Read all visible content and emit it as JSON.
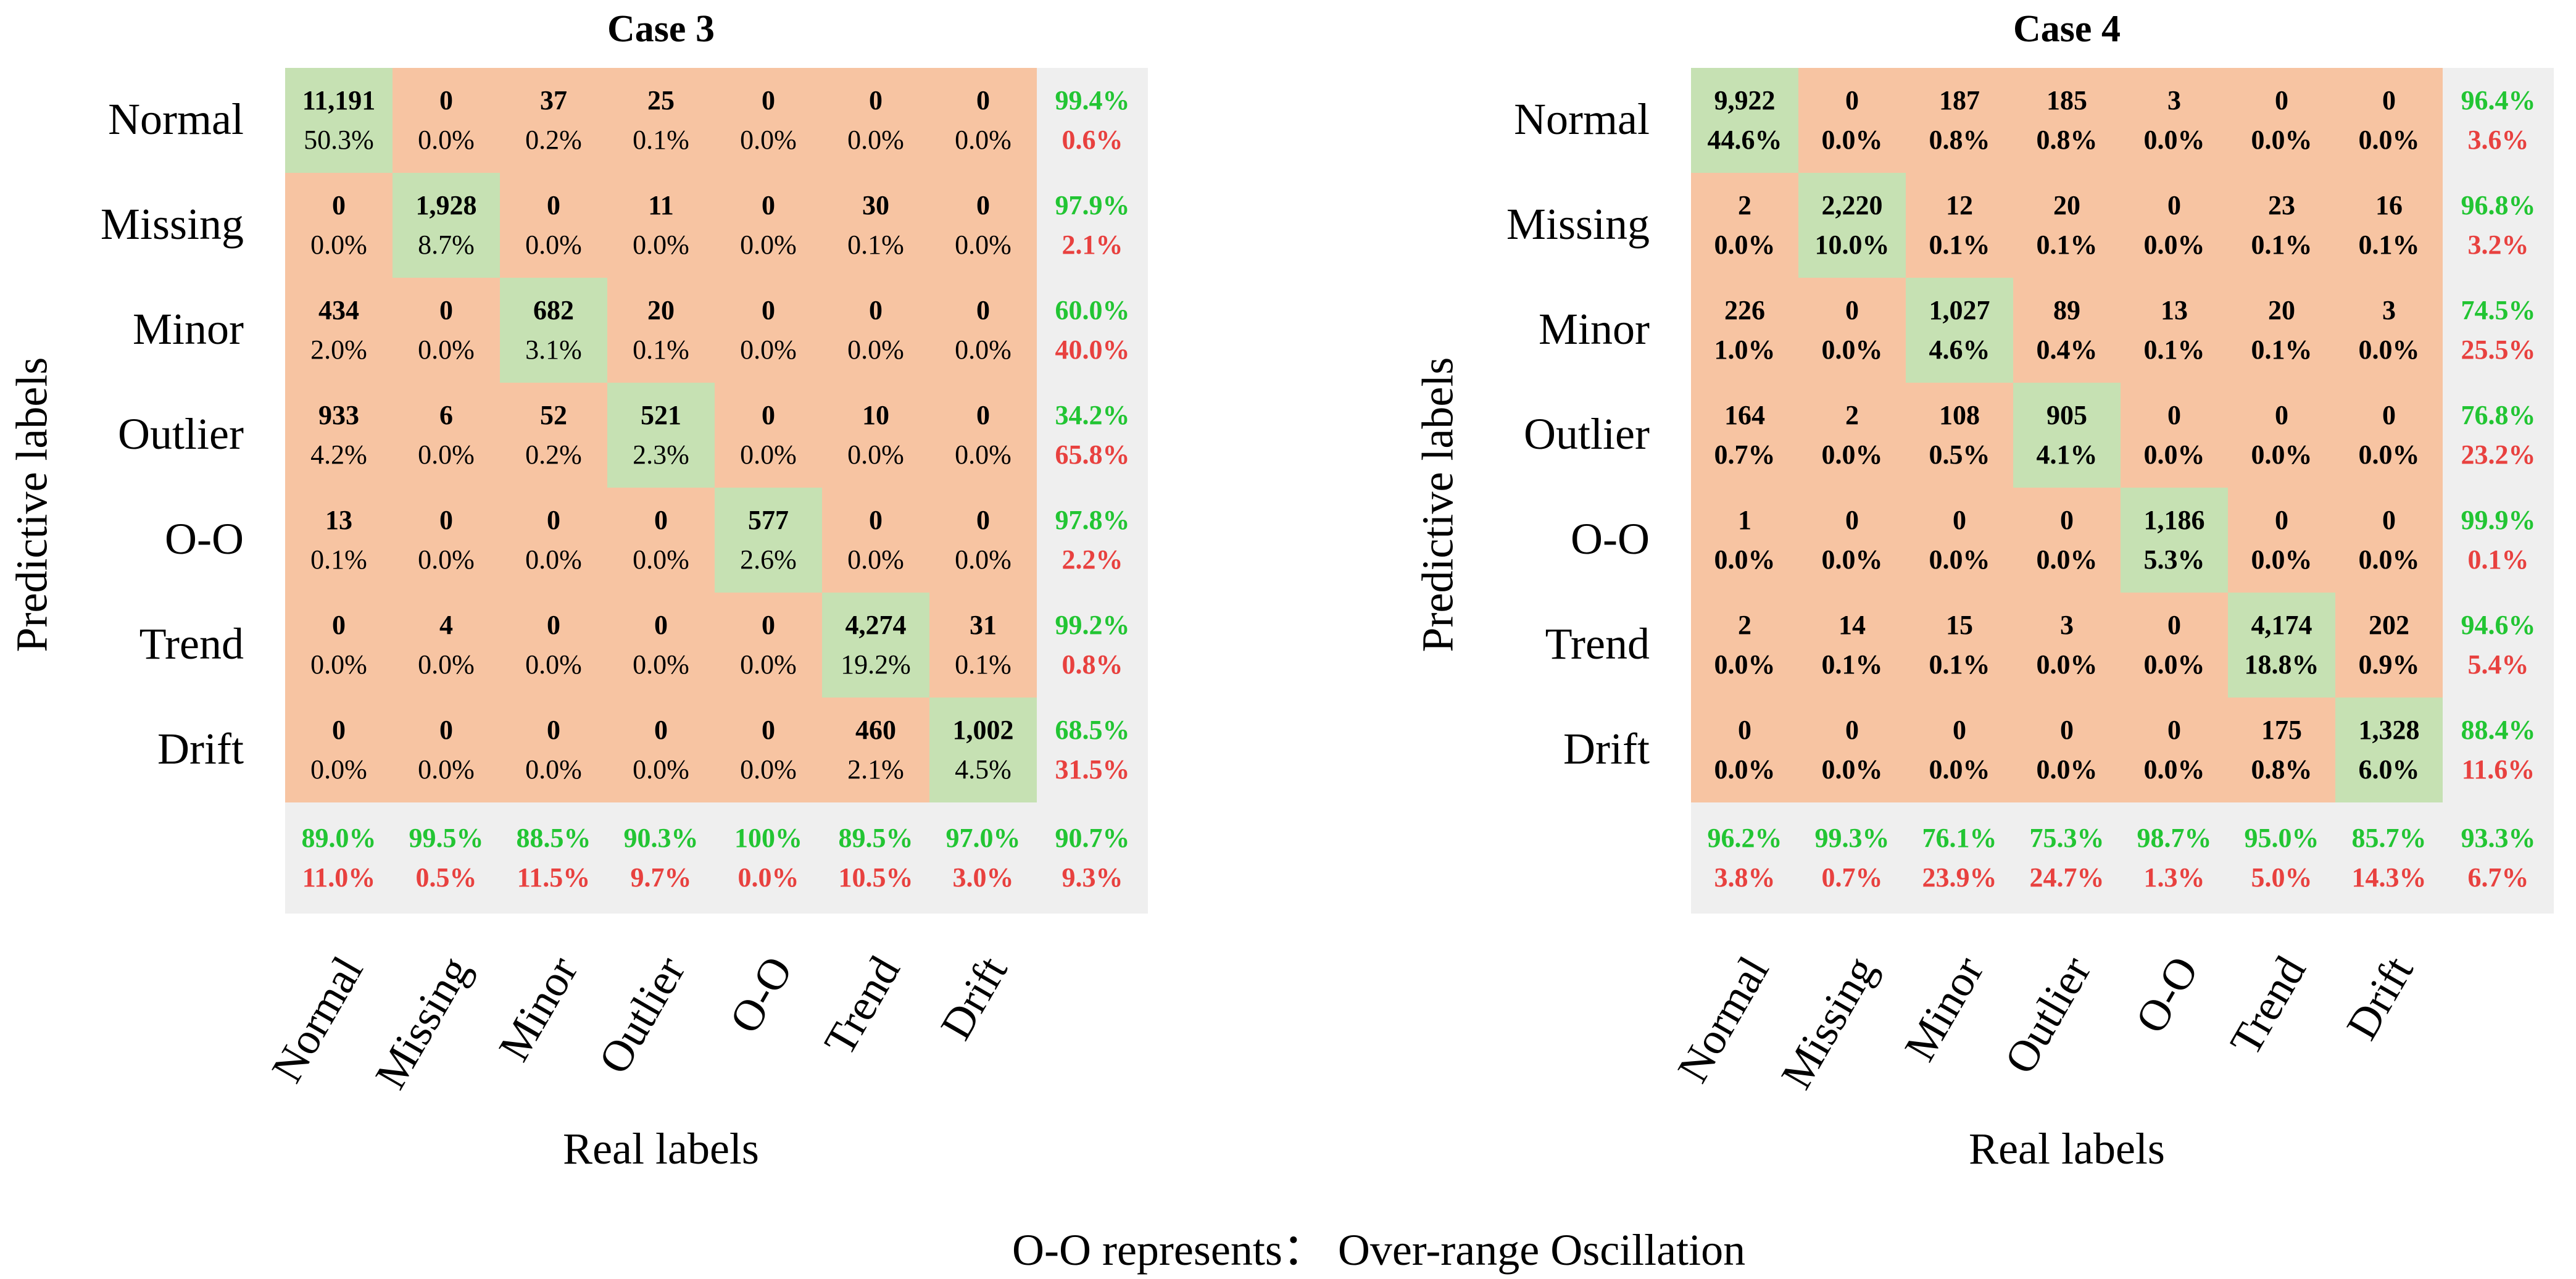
{
  "colors": {
    "diag": "#c6e1b3",
    "off": "#f7c4a2",
    "summary_bg": "#efefef",
    "good": "#22c533",
    "bad": "#e8413f"
  },
  "chart_data": [
    {
      "type": "heatmap",
      "title": "Case 3",
      "xlabel": "Real labels",
      "ylabel": "Predictive labels",
      "row_labels": [
        "Normal",
        "Missing",
        "Minor",
        "Outlier",
        "O-O",
        "Trend",
        "Drift"
      ],
      "col_labels": [
        "Normal",
        "Missing",
        "Minor",
        "Outlier",
        "O-O",
        "Trend",
        "Drift"
      ],
      "counts": [
        [
          "11,191",
          "0",
          "37",
          "25",
          "0",
          "0",
          "0"
        ],
        [
          "0",
          "1,928",
          "0",
          "11",
          "0",
          "30",
          "0"
        ],
        [
          "434",
          "0",
          "682",
          "20",
          "0",
          "0",
          "0"
        ],
        [
          "933",
          "6",
          "52",
          "521",
          "0",
          "10",
          "0"
        ],
        [
          "13",
          "0",
          "0",
          "0",
          "577",
          "0",
          "0"
        ],
        [
          "0",
          "4",
          "0",
          "0",
          "0",
          "4,274",
          "31"
        ],
        [
          "0",
          "0",
          "0",
          "0",
          "0",
          "460",
          "1,002"
        ]
      ],
      "percents": [
        [
          "50.3%",
          "0.0%",
          "0.2%",
          "0.1%",
          "0.0%",
          "0.0%",
          "0.0%"
        ],
        [
          "0.0%",
          "8.7%",
          "0.0%",
          "0.0%",
          "0.0%",
          "0.1%",
          "0.0%"
        ],
        [
          "2.0%",
          "0.0%",
          "3.1%",
          "0.1%",
          "0.0%",
          "0.0%",
          "0.0%"
        ],
        [
          "4.2%",
          "0.0%",
          "0.2%",
          "2.3%",
          "0.0%",
          "0.0%",
          "0.0%"
        ],
        [
          "0.1%",
          "0.0%",
          "0.0%",
          "0.0%",
          "2.6%",
          "0.0%",
          "0.0%"
        ],
        [
          "0.0%",
          "0.0%",
          "0.0%",
          "0.0%",
          "0.0%",
          "19.2%",
          "0.1%"
        ],
        [
          "0.0%",
          "0.0%",
          "0.0%",
          "0.0%",
          "0.0%",
          "2.1%",
          "4.5%"
        ]
      ],
      "row_summary": [
        [
          "99.4%",
          "0.6%"
        ],
        [
          "97.9%",
          "2.1%"
        ],
        [
          "60.0%",
          "40.0%"
        ],
        [
          "34.2%",
          "65.8%"
        ],
        [
          "97.8%",
          "2.2%"
        ],
        [
          "99.2%",
          "0.8%"
        ],
        [
          "68.5%",
          "31.5%"
        ]
      ],
      "col_summary": [
        [
          "89.0%",
          "11.0%"
        ],
        [
          "99.5%",
          "0.5%"
        ],
        [
          "88.5%",
          "11.5%"
        ],
        [
          "90.3%",
          "9.7%"
        ],
        [
          "100%",
          "0.0%"
        ],
        [
          "89.5%",
          "10.5%"
        ],
        [
          "97.0%",
          "3.0%"
        ]
      ],
      "overall": [
        "90.7%",
        "9.3%"
      ],
      "bold_percents": false
    },
    {
      "type": "heatmap",
      "title": "Case 4",
      "xlabel": "Real labels",
      "ylabel": "Predictive labels",
      "row_labels": [
        "Normal",
        "Missing",
        "Minor",
        "Outlier",
        "O-O",
        "Trend",
        "Drift"
      ],
      "col_labels": [
        "Normal",
        "Missing",
        "Minor",
        "Outlier",
        "O-O",
        "Trend",
        "Drift"
      ],
      "counts": [
        [
          "9,922",
          "0",
          "187",
          "185",
          "3",
          "0",
          "0"
        ],
        [
          "2",
          "2,220",
          "12",
          "20",
          "0",
          "23",
          "16"
        ],
        [
          "226",
          "0",
          "1,027",
          "89",
          "13",
          "20",
          "3"
        ],
        [
          "164",
          "2",
          "108",
          "905",
          "0",
          "0",
          "0"
        ],
        [
          "1",
          "0",
          "0",
          "0",
          "1,186",
          "0",
          "0"
        ],
        [
          "2",
          "14",
          "15",
          "3",
          "0",
          "4,174",
          "202"
        ],
        [
          "0",
          "0",
          "0",
          "0",
          "0",
          "175",
          "1,328"
        ]
      ],
      "percents": [
        [
          "44.6%",
          "0.0%",
          "0.8%",
          "0.8%",
          "0.0%",
          "0.0%",
          "0.0%"
        ],
        [
          "0.0%",
          "10.0%",
          "0.1%",
          "0.1%",
          "0.0%",
          "0.1%",
          "0.1%"
        ],
        [
          "1.0%",
          "0.0%",
          "4.6%",
          "0.4%",
          "0.1%",
          "0.1%",
          "0.0%"
        ],
        [
          "0.7%",
          "0.0%",
          "0.5%",
          "4.1%",
          "0.0%",
          "0.0%",
          "0.0%"
        ],
        [
          "0.0%",
          "0.0%",
          "0.0%",
          "0.0%",
          "5.3%",
          "0.0%",
          "0.0%"
        ],
        [
          "0.0%",
          "0.1%",
          "0.1%",
          "0.0%",
          "0.0%",
          "18.8%",
          "0.9%"
        ],
        [
          "0.0%",
          "0.0%",
          "0.0%",
          "0.0%",
          "0.0%",
          "0.8%",
          "6.0%"
        ]
      ],
      "row_summary": [
        [
          "96.4%",
          "3.6%"
        ],
        [
          "96.8%",
          "3.2%"
        ],
        [
          "74.5%",
          "25.5%"
        ],
        [
          "76.8%",
          "23.2%"
        ],
        [
          "99.9%",
          "0.1%"
        ],
        [
          "94.6%",
          "5.4%"
        ],
        [
          "88.4%",
          "11.6%"
        ]
      ],
      "col_summary": [
        [
          "96.2%",
          "3.8%"
        ],
        [
          "99.3%",
          "0.7%"
        ],
        [
          "76.1%",
          "23.9%"
        ],
        [
          "75.3%",
          "24.7%"
        ],
        [
          "98.7%",
          "1.3%"
        ],
        [
          "95.0%",
          "5.0%"
        ],
        [
          "85.7%",
          "14.3%"
        ]
      ],
      "overall": [
        "93.3%",
        "6.7%"
      ],
      "bold_percents": true
    }
  ],
  "footnote": "O-O represents： Over-range Oscillation"
}
